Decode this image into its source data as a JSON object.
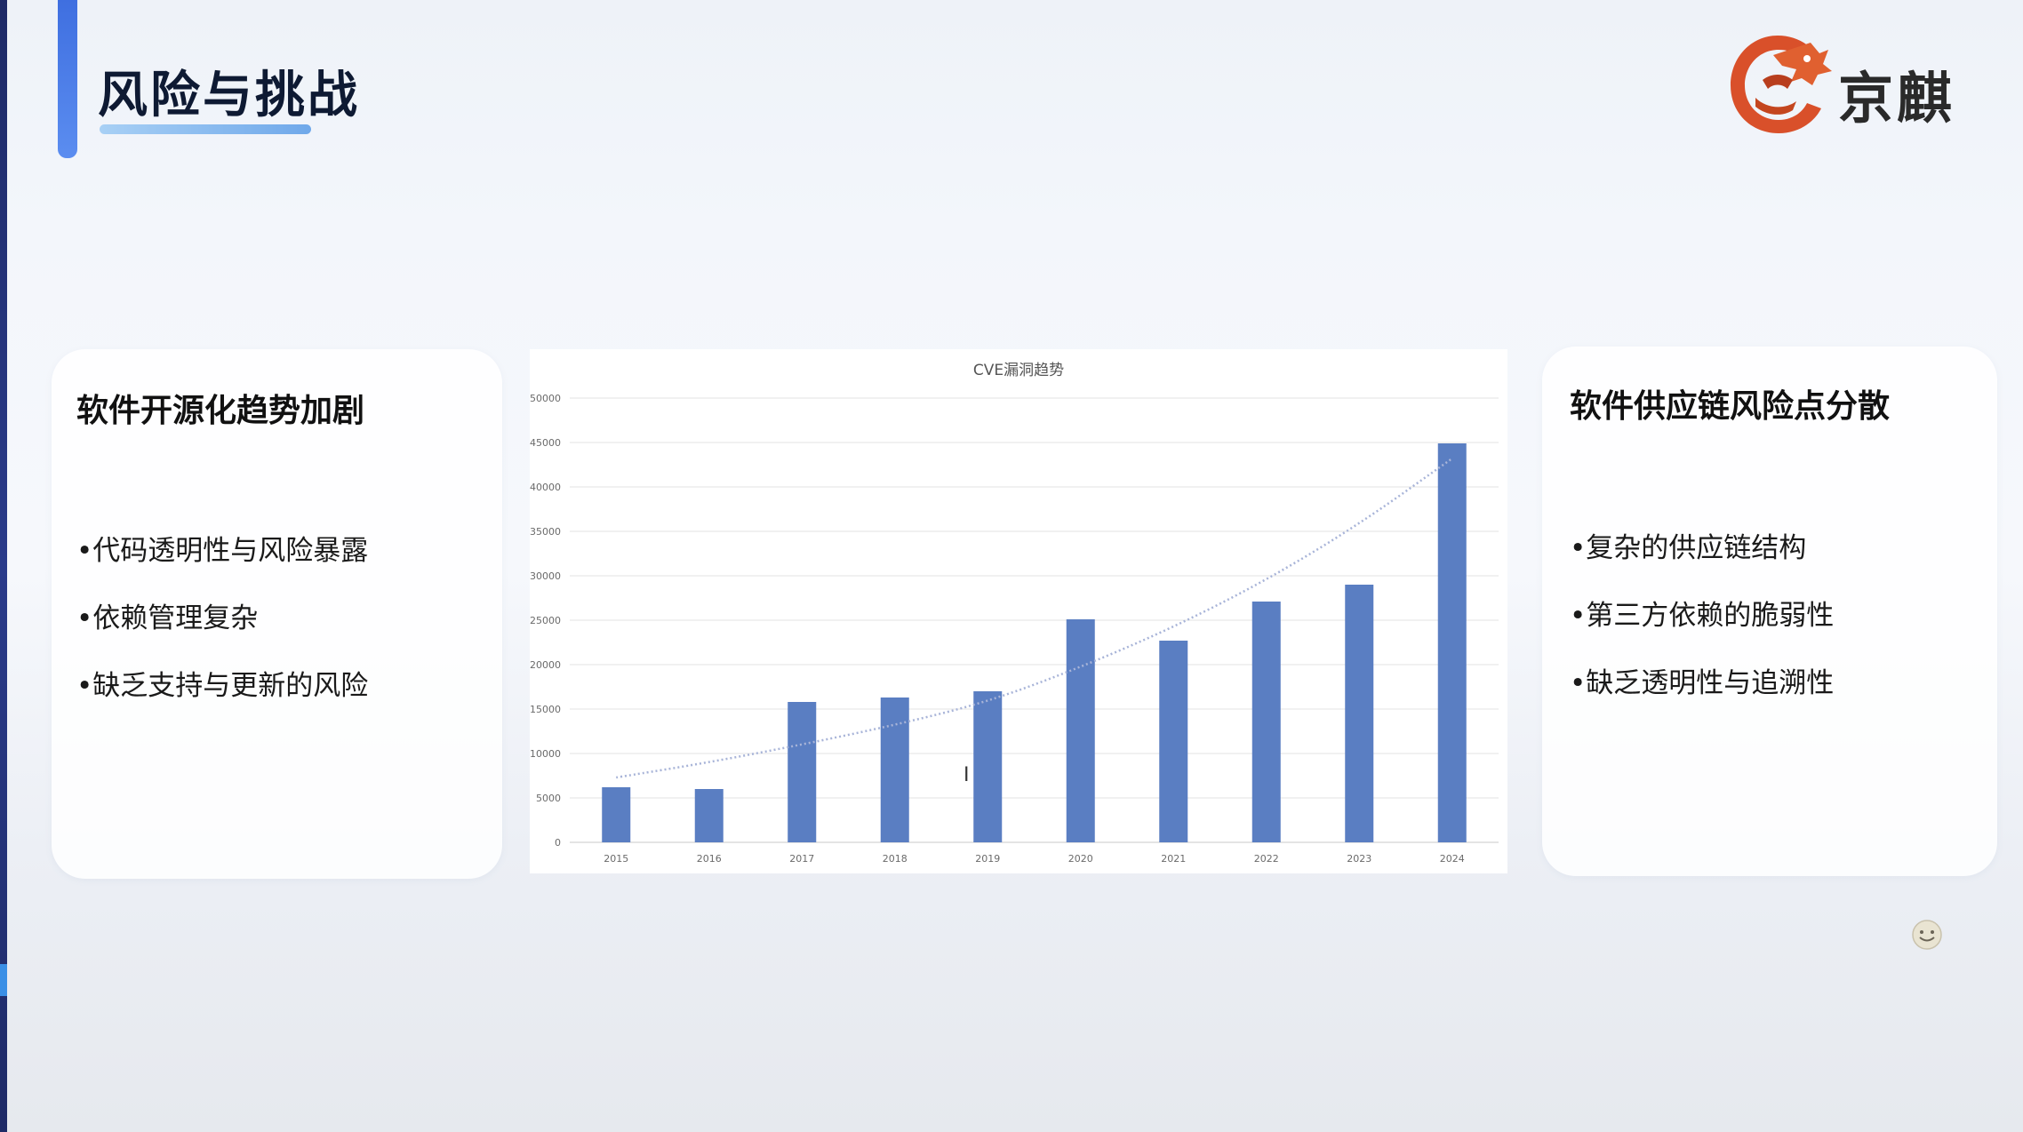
{
  "slide": {
    "title": "风险与挑战",
    "logo": {
      "text": "京麒",
      "icon": "dragon-logo-icon"
    }
  },
  "left_card": {
    "heading": "软件开源化趋势加剧",
    "bullets": [
      "•代码透明性与风险暴露",
      "•依赖管理复杂",
      "•缺乏支持与更新的风险"
    ]
  },
  "right_card": {
    "heading": "软件供应链风险点分散",
    "bullets": [
      "•复杂的供应链结构",
      "•第三方依赖的脆弱性",
      "•缺乏透明性与追溯性"
    ]
  },
  "colors": {
    "bar": "#5a7ec2",
    "trendline": "#a8b4d8",
    "title_bar": "#4a7de8",
    "logo_orange": "#d9502a"
  },
  "chart_data": {
    "type": "bar",
    "title": "CVE漏洞趋势",
    "categories": [
      "2015",
      "2016",
      "2017",
      "2018",
      "2019",
      "2020",
      "2021",
      "2022",
      "2023",
      "2024"
    ],
    "values": [
      6200,
      6000,
      15800,
      16300,
      17000,
      25100,
      22700,
      27100,
      29000,
      44900
    ],
    "ylim": [
      0,
      50000
    ],
    "yticks": [
      "0",
      "5000",
      "10000",
      "15000",
      "20000",
      "25000",
      "30000",
      "35000",
      "40000",
      "45000",
      "50000"
    ],
    "ytick_values": [
      0,
      5000,
      10000,
      15000,
      20000,
      25000,
      30000,
      35000,
      40000,
      45000,
      50000
    ],
    "trendline": {
      "type": "exponential",
      "style": "dotted",
      "values": [
        7300,
        9000,
        11000,
        13200,
        15800,
        19700,
        24200,
        29500,
        35800,
        43200
      ]
    },
    "grid": true,
    "xlabel": "",
    "ylabel": ""
  }
}
